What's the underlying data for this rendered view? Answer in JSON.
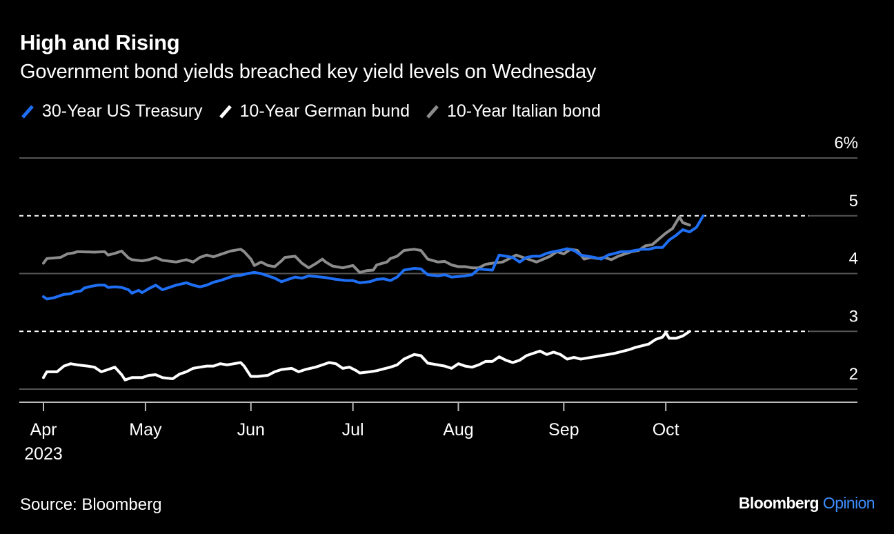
{
  "title": "High and Rising",
  "subtitle": "Government bond yields breached key yield levels on Wednesday",
  "source": "Source: Bloomberg",
  "brand": {
    "name": "Bloomberg",
    "section": "Opinion"
  },
  "colors": {
    "us30": "#1f6ff5",
    "bund10": "#ffffff",
    "btp10": "#8c8c8c",
    "opinion": "#3d8dff"
  },
  "chart_data": {
    "type": "line",
    "x_label": "",
    "y_label": "",
    "ylim": [
      1.75,
      6
    ],
    "y_ticks": [
      {
        "value": 6,
        "label": "6%"
      },
      {
        "value": 5,
        "label": "5"
      },
      {
        "value": 4,
        "label": "4"
      },
      {
        "value": 3,
        "label": "3"
      },
      {
        "value": 2,
        "label": "2"
      }
    ],
    "reference_lines": [
      5,
      3
    ],
    "x_ticks": [
      {
        "label": "Apr",
        "sublabel": "2023",
        "day": 0
      },
      {
        "label": "May",
        "sublabel": "",
        "day": 30
      },
      {
        "label": "Jun",
        "sublabel": "",
        "day": 61
      },
      {
        "label": "Jul",
        "sublabel": "",
        "day": 91
      },
      {
        "label": "Aug",
        "sublabel": "",
        "day": 122
      },
      {
        "label": "Sep",
        "sublabel": "",
        "day": 153
      },
      {
        "label": "Oct",
        "sublabel": "",
        "day": 183
      }
    ],
    "xlim_days": [
      -6,
      194
    ],
    "series": [
      {
        "key": "btp10",
        "name": "10-Year Italian bond",
        "color": "#8c8c8c",
        "points": [
          [
            0,
            4.18
          ],
          [
            1,
            4.26
          ],
          [
            5,
            4.28
          ],
          [
            7,
            4.34
          ],
          [
            9,
            4.36
          ],
          [
            10,
            4.38
          ],
          [
            15,
            4.37
          ],
          [
            18,
            4.38
          ],
          [
            19,
            4.32
          ],
          [
            21,
            4.35
          ],
          [
            23,
            4.39
          ],
          [
            25,
            4.27
          ],
          [
            26,
            4.24
          ],
          [
            29,
            4.22
          ],
          [
            31,
            4.24
          ],
          [
            33,
            4.28
          ],
          [
            35,
            4.23
          ],
          [
            39,
            4.2
          ],
          [
            42,
            4.24
          ],
          [
            44,
            4.2
          ],
          [
            46,
            4.28
          ],
          [
            48,
            4.32
          ],
          [
            50,
            4.29
          ],
          [
            53,
            4.35
          ],
          [
            55,
            4.39
          ],
          [
            58,
            4.42
          ],
          [
            59,
            4.38
          ],
          [
            61,
            4.25
          ],
          [
            62,
            4.14
          ],
          [
            64,
            4.2
          ],
          [
            66,
            4.14
          ],
          [
            68,
            4.12
          ],
          [
            70,
            4.22
          ],
          [
            71,
            4.28
          ],
          [
            74,
            4.3
          ],
          [
            76,
            4.18
          ],
          [
            78,
            4.1
          ],
          [
            80,
            4.17
          ],
          [
            82,
            4.25
          ],
          [
            83,
            4.2
          ],
          [
            85,
            4.13
          ],
          [
            88,
            4.1
          ],
          [
            91,
            4.14
          ],
          [
            93,
            4.02
          ],
          [
            95,
            4.05
          ],
          [
            97,
            4.06
          ],
          [
            98,
            4.15
          ],
          [
            101,
            4.2
          ],
          [
            102,
            4.26
          ],
          [
            104,
            4.3
          ],
          [
            106,
            4.4
          ],
          [
            109,
            4.42
          ],
          [
            111,
            4.4
          ],
          [
            113,
            4.25
          ],
          [
            116,
            4.2
          ],
          [
            118,
            4.21
          ],
          [
            120,
            4.15
          ],
          [
            122,
            4.12
          ],
          [
            124,
            4.12
          ],
          [
            126,
            4.1
          ],
          [
            128,
            4.1
          ],
          [
            130,
            4.16
          ],
          [
            132,
            4.18
          ],
          [
            135,
            4.2
          ],
          [
            137,
            4.26
          ],
          [
            139,
            4.32
          ],
          [
            141,
            4.28
          ],
          [
            143,
            4.24
          ],
          [
            145,
            4.2
          ],
          [
            147,
            4.25
          ],
          [
            149,
            4.3
          ],
          [
            151,
            4.38
          ],
          [
            153,
            4.34
          ],
          [
            155,
            4.42
          ],
          [
            157,
            4.4
          ],
          [
            159,
            4.25
          ],
          [
            161,
            4.28
          ],
          [
            163,
            4.26
          ],
          [
            165,
            4.28
          ],
          [
            167,
            4.24
          ],
          [
            169,
            4.3
          ],
          [
            171,
            4.34
          ],
          [
            173,
            4.38
          ],
          [
            175,
            4.4
          ],
          [
            177,
            4.48
          ],
          [
            179,
            4.5
          ],
          [
            181,
            4.6
          ],
          [
            183,
            4.7
          ],
          [
            185,
            4.78
          ],
          [
            187,
            4.98
          ],
          [
            188,
            4.88
          ],
          [
            190,
            4.84
          ]
        ]
      },
      {
        "key": "us30",
        "name": "30-Year US Treasury",
        "color": "#1f6ff5",
        "points": [
          [
            0,
            3.6
          ],
          [
            1,
            3.56
          ],
          [
            3,
            3.58
          ],
          [
            5,
            3.62
          ],
          [
            6,
            3.64
          ],
          [
            8,
            3.65
          ],
          [
            9,
            3.68
          ],
          [
            11,
            3.7
          ],
          [
            12,
            3.75
          ],
          [
            14,
            3.78
          ],
          [
            16,
            3.8
          ],
          [
            18,
            3.8
          ],
          [
            19,
            3.76
          ],
          [
            21,
            3.77
          ],
          [
            23,
            3.76
          ],
          [
            25,
            3.72
          ],
          [
            26,
            3.66
          ],
          [
            28,
            3.71
          ],
          [
            29,
            3.67
          ],
          [
            31,
            3.74
          ],
          [
            33,
            3.8
          ],
          [
            35,
            3.72
          ],
          [
            37,
            3.76
          ],
          [
            39,
            3.8
          ],
          [
            42,
            3.84
          ],
          [
            44,
            3.8
          ],
          [
            46,
            3.77
          ],
          [
            48,
            3.8
          ],
          [
            50,
            3.85
          ],
          [
            52,
            3.88
          ],
          [
            54,
            3.92
          ],
          [
            56,
            3.96
          ],
          [
            58,
            3.97
          ],
          [
            60,
            4.0
          ],
          [
            62,
            4.02
          ],
          [
            64,
            4.0
          ],
          [
            66,
            3.96
          ],
          [
            68,
            3.92
          ],
          [
            70,
            3.86
          ],
          [
            72,
            3.9
          ],
          [
            74,
            3.94
          ],
          [
            76,
            3.92
          ],
          [
            78,
            3.96
          ],
          [
            80,
            3.95
          ],
          [
            83,
            3.93
          ],
          [
            86,
            3.9
          ],
          [
            89,
            3.88
          ],
          [
            91,
            3.88
          ],
          [
            93,
            3.84
          ],
          [
            96,
            3.86
          ],
          [
            98,
            3.9
          ],
          [
            100,
            3.91
          ],
          [
            102,
            3.88
          ],
          [
            104,
            3.94
          ],
          [
            106,
            4.06
          ],
          [
            109,
            4.09
          ],
          [
            111,
            4.08
          ],
          [
            113,
            3.98
          ],
          [
            116,
            3.96
          ],
          [
            118,
            3.98
          ],
          [
            120,
            3.94
          ],
          [
            122,
            3.95
          ],
          [
            124,
            3.96
          ],
          [
            126,
            3.98
          ],
          [
            128,
            4.08
          ],
          [
            130,
            4.07
          ],
          [
            132,
            4.06
          ],
          [
            134,
            4.32
          ],
          [
            136,
            4.3
          ],
          [
            138,
            4.28
          ],
          [
            140,
            4.2
          ],
          [
            142,
            4.28
          ],
          [
            144,
            4.3
          ],
          [
            146,
            4.3
          ],
          [
            148,
            4.35
          ],
          [
            150,
            4.38
          ],
          [
            152,
            4.4
          ],
          [
            154,
            4.43
          ],
          [
            156,
            4.4
          ],
          [
            158,
            4.32
          ],
          [
            160,
            4.3
          ],
          [
            162,
            4.28
          ],
          [
            164,
            4.25
          ],
          [
            166,
            4.32
          ],
          [
            168,
            4.35
          ],
          [
            170,
            4.38
          ],
          [
            172,
            4.38
          ],
          [
            174,
            4.4
          ],
          [
            176,
            4.42
          ],
          [
            178,
            4.42
          ],
          [
            180,
            4.45
          ],
          [
            182,
            4.45
          ],
          [
            184,
            4.58
          ],
          [
            186,
            4.66
          ],
          [
            188,
            4.76
          ],
          [
            190,
            4.72
          ],
          [
            192,
            4.8
          ],
          [
            194,
            5.0
          ]
        ]
      },
      {
        "key": "bund10",
        "name": "10-Year German bund",
        "color": "#ffffff",
        "points": [
          [
            0,
            2.2
          ],
          [
            1,
            2.3
          ],
          [
            4,
            2.3
          ],
          [
            6,
            2.4
          ],
          [
            8,
            2.44
          ],
          [
            10,
            2.42
          ],
          [
            13,
            2.4
          ],
          [
            15,
            2.38
          ],
          [
            17,
            2.3
          ],
          [
            19,
            2.34
          ],
          [
            21,
            2.38
          ],
          [
            23,
            2.25
          ],
          [
            24,
            2.16
          ],
          [
            26,
            2.2
          ],
          [
            29,
            2.2
          ],
          [
            31,
            2.24
          ],
          [
            33,
            2.25
          ],
          [
            35,
            2.2
          ],
          [
            38,
            2.18
          ],
          [
            40,
            2.26
          ],
          [
            42,
            2.3
          ],
          [
            44,
            2.36
          ],
          [
            46,
            2.38
          ],
          [
            48,
            2.4
          ],
          [
            50,
            2.4
          ],
          [
            52,
            2.44
          ],
          [
            54,
            2.42
          ],
          [
            56,
            2.44
          ],
          [
            58,
            2.46
          ],
          [
            59,
            2.4
          ],
          [
            61,
            2.22
          ],
          [
            63,
            2.22
          ],
          [
            66,
            2.24
          ],
          [
            68,
            2.3
          ],
          [
            70,
            2.34
          ],
          [
            73,
            2.36
          ],
          [
            75,
            2.3
          ],
          [
            77,
            2.34
          ],
          [
            80,
            2.38
          ],
          [
            82,
            2.42
          ],
          [
            84,
            2.46
          ],
          [
            86,
            2.44
          ],
          [
            88,
            2.36
          ],
          [
            90,
            2.38
          ],
          [
            92,
            2.32
          ],
          [
            93,
            2.28
          ],
          [
            96,
            2.3
          ],
          [
            98,
            2.32
          ],
          [
            100,
            2.35
          ],
          [
            102,
            2.38
          ],
          [
            104,
            2.42
          ],
          [
            106,
            2.52
          ],
          [
            109,
            2.6
          ],
          [
            111,
            2.58
          ],
          [
            113,
            2.45
          ],
          [
            116,
            2.42
          ],
          [
            118,
            2.4
          ],
          [
            120,
            2.36
          ],
          [
            122,
            2.44
          ],
          [
            124,
            2.4
          ],
          [
            126,
            2.38
          ],
          [
            128,
            2.42
          ],
          [
            130,
            2.48
          ],
          [
            132,
            2.48
          ],
          [
            134,
            2.56
          ],
          [
            136,
            2.5
          ],
          [
            138,
            2.46
          ],
          [
            140,
            2.5
          ],
          [
            142,
            2.58
          ],
          [
            144,
            2.62
          ],
          [
            146,
            2.66
          ],
          [
            148,
            2.6
          ],
          [
            150,
            2.64
          ],
          [
            152,
            2.6
          ],
          [
            154,
            2.52
          ],
          [
            156,
            2.55
          ],
          [
            158,
            2.52
          ],
          [
            160,
            2.54
          ],
          [
            162,
            2.56
          ],
          [
            164,
            2.58
          ],
          [
            166,
            2.6
          ],
          [
            168,
            2.62
          ],
          [
            170,
            2.65
          ],
          [
            172,
            2.68
          ],
          [
            174,
            2.72
          ],
          [
            176,
            2.75
          ],
          [
            178,
            2.78
          ],
          [
            180,
            2.86
          ],
          [
            182,
            2.9
          ],
          [
            183,
            2.98
          ],
          [
            184,
            2.88
          ],
          [
            186,
            2.88
          ],
          [
            188,
            2.92
          ],
          [
            190,
            3.0
          ]
        ]
      }
    ],
    "legend_order": [
      "us30",
      "bund10",
      "btp10"
    ]
  }
}
